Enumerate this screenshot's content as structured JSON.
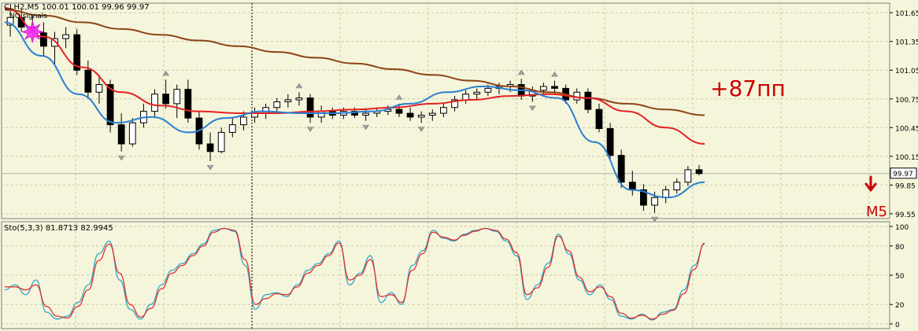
{
  "header": {
    "symbol_info": "CLH2,M5  100.01 100.01 99.96 99.97",
    "signals_label": "NO signals"
  },
  "annotations": {
    "profit_text": "+87пп",
    "timeframe_text": "M5"
  },
  "colors": {
    "background": "#f5f5dc",
    "grid": "#c8c8a8",
    "candle": "#000000",
    "ma_slow": "#8b4513",
    "ma_mid": "#e32222",
    "ma_fast": "#2a7fd4",
    "envelope": "#000000",
    "stoch_main": "#2fa8c8",
    "stoch_signal": "#e03030",
    "annotation": "#cc0000",
    "fractal_marker": "#a0a0a0",
    "signal_marker": "#ff33ff"
  },
  "chart_data": [
    {
      "type": "candlestick",
      "title": "CLH2,M5",
      "price_ticks": [
        "101.65",
        "101.35",
        "101.05",
        "100.75",
        "100.45",
        "100.15",
        "99.85",
        "99.55"
      ],
      "current_price": "99.97",
      "ylim": [
        99.5,
        101.75
      ],
      "ohlc": [
        [
          101.52,
          101.67,
          101.4,
          101.6
        ],
        [
          101.6,
          101.68,
          101.45,
          101.5
        ],
        [
          101.5,
          101.62,
          101.38,
          101.44
        ],
        [
          101.44,
          101.55,
          101.2,
          101.3
        ],
        [
          101.3,
          101.45,
          101.1,
          101.38
        ],
        [
          101.38,
          101.5,
          101.28,
          101.42
        ],
        [
          101.42,
          101.48,
          101.0,
          101.05
        ],
        [
          101.05,
          101.15,
          100.75,
          100.82
        ],
        [
          100.82,
          101.0,
          100.7,
          100.9
        ],
        [
          100.9,
          100.95,
          100.4,
          100.48
        ],
        [
          100.48,
          100.6,
          100.2,
          100.28
        ],
        [
          100.28,
          100.55,
          100.25,
          100.5
        ],
        [
          100.5,
          100.7,
          100.45,
          100.62
        ],
        [
          100.62,
          100.85,
          100.55,
          100.8
        ],
        [
          100.8,
          100.95,
          100.65,
          100.7
        ],
        [
          100.7,
          100.9,
          100.55,
          100.85
        ],
        [
          100.85,
          100.95,
          100.5,
          100.55
        ],
        [
          100.55,
          100.62,
          100.22,
          100.28
        ],
        [
          100.28,
          100.4,
          100.1,
          100.2
        ],
        [
          100.2,
          100.45,
          100.18,
          100.4
        ],
        [
          100.4,
          100.55,
          100.35,
          100.48
        ],
        [
          100.48,
          100.62,
          100.42,
          100.56
        ],
        [
          100.56,
          100.66,
          100.5,
          100.6
        ],
        [
          100.6,
          100.7,
          100.54,
          100.66
        ],
        [
          100.66,
          100.76,
          100.6,
          100.72
        ],
        [
          100.72,
          100.8,
          100.66,
          100.74
        ],
        [
          100.74,
          100.82,
          100.68,
          100.76
        ],
        [
          100.76,
          100.8,
          100.5,
          100.56
        ],
        [
          100.56,
          100.68,
          100.5,
          100.62
        ],
        [
          100.62,
          100.66,
          100.54,
          100.58
        ],
        [
          100.58,
          100.66,
          100.54,
          100.62
        ],
        [
          100.62,
          100.66,
          100.55,
          100.58
        ],
        [
          100.58,
          100.64,
          100.52,
          100.6
        ],
        [
          100.6,
          100.66,
          100.56,
          100.62
        ],
        [
          100.62,
          100.68,
          100.58,
          100.64
        ],
        [
          100.64,
          100.7,
          100.56,
          100.6
        ],
        [
          100.6,
          100.66,
          100.52,
          100.56
        ],
        [
          100.56,
          100.62,
          100.5,
          100.58
        ],
        [
          100.58,
          100.64,
          100.52,
          100.6
        ],
        [
          100.6,
          100.7,
          100.56,
          100.66
        ],
        [
          100.66,
          100.78,
          100.62,
          100.74
        ],
        [
          100.74,
          100.84,
          100.7,
          100.8
        ],
        [
          100.8,
          100.86,
          100.74,
          100.82
        ],
        [
          100.82,
          100.9,
          100.78,
          100.86
        ],
        [
          100.86,
          100.92,
          100.8,
          100.88
        ],
        [
          100.88,
          100.94,
          100.82,
          100.9
        ],
        [
          100.9,
          100.96,
          100.74,
          100.78
        ],
        [
          100.78,
          100.88,
          100.72,
          100.84
        ],
        [
          100.84,
          100.92,
          100.8,
          100.88
        ],
        [
          100.88,
          100.94,
          100.8,
          100.86
        ],
        [
          100.86,
          100.9,
          100.7,
          100.74
        ],
        [
          100.74,
          100.86,
          100.7,
          100.82
        ],
        [
          100.82,
          100.86,
          100.6,
          100.64
        ],
        [
          100.64,
          100.7,
          100.4,
          100.44
        ],
        [
          100.44,
          100.5,
          100.1,
          100.16
        ],
        [
          100.16,
          100.22,
          99.82,
          99.88
        ],
        [
          99.88,
          100.0,
          99.74,
          99.8
        ],
        [
          99.8,
          99.86,
          99.58,
          99.64
        ],
        [
          99.64,
          99.78,
          99.56,
          99.72
        ],
        [
          99.72,
          99.84,
          99.66,
          99.8
        ],
        [
          99.8,
          99.92,
          99.76,
          99.88
        ],
        [
          99.88,
          100.05,
          99.84,
          100.01
        ],
        [
          100.01,
          100.06,
          99.95,
          99.97
        ]
      ],
      "moving_averages": [
        {
          "name": "MA slow",
          "color": "#8b4513",
          "values": [
            101.68,
            101.62,
            101.55,
            101.48,
            101.42,
            101.36,
            101.3,
            101.24,
            101.18,
            101.12,
            101.06,
            101.0,
            100.94,
            100.88,
            100.82,
            100.76,
            100.7,
            100.64,
            100.58
          ]
        },
        {
          "name": "MA mid",
          "color": "#e32222",
          "values": [
            101.7,
            101.4,
            101.08,
            100.82,
            100.68,
            100.62,
            100.6,
            100.6,
            100.62,
            100.64,
            100.66,
            100.7,
            100.74,
            100.78,
            100.8,
            100.76,
            100.62,
            100.45,
            100.28
          ]
        },
        {
          "name": "MA fast",
          "color": "#2a7fd4",
          "values": [
            101.55,
            101.2,
            100.8,
            100.5,
            100.56,
            100.4,
            100.55,
            100.62,
            100.6,
            100.6,
            100.62,
            100.7,
            100.82,
            100.88,
            100.84,
            100.76,
            100.3,
            99.8,
            99.72,
            99.88
          ]
        }
      ]
    },
    {
      "type": "line",
      "title": "Sto(5,3,3) 81.8713 82.9945",
      "y_ticks": [
        "100",
        "80",
        "50",
        "20",
        "0"
      ],
      "ylim": [
        0,
        100
      ],
      "series": [
        {
          "name": "main",
          "color": "#2fa8c8",
          "values": [
            35,
            40,
            30,
            45,
            12,
            5,
            8,
            22,
            40,
            72,
            85,
            45,
            15,
            5,
            20,
            40,
            55,
            62,
            72,
            82,
            96,
            98,
            95,
            60,
            15,
            30,
            32,
            28,
            40,
            55,
            62,
            72,
            85,
            40,
            52,
            70,
            22,
            32,
            20,
            60,
            75,
            96,
            88,
            85,
            92,
            96,
            98,
            95,
            85,
            70,
            25,
            40,
            62,
            92,
            72,
            45,
            30,
            40,
            25,
            8,
            5,
            10,
            4,
            12,
            15,
            35,
            60,
            82
          ]
        },
        {
          "name": "signal",
          "color": "#e03030",
          "values": [
            38,
            38,
            35,
            40,
            18,
            8,
            6,
            18,
            35,
            65,
            82,
            52,
            20,
            7,
            16,
            36,
            52,
            60,
            70,
            80,
            94,
            98,
            96,
            66,
            20,
            26,
            31,
            30,
            38,
            52,
            60,
            70,
            83,
            45,
            50,
            66,
            28,
            30,
            22,
            55,
            72,
            94,
            89,
            86,
            91,
            95,
            98,
            96,
            87,
            73,
            30,
            37,
            58,
            90,
            75,
            48,
            33,
            38,
            28,
            11,
            6,
            9,
            5,
            10,
            14,
            31,
            56,
            83
          ]
        }
      ]
    }
  ]
}
